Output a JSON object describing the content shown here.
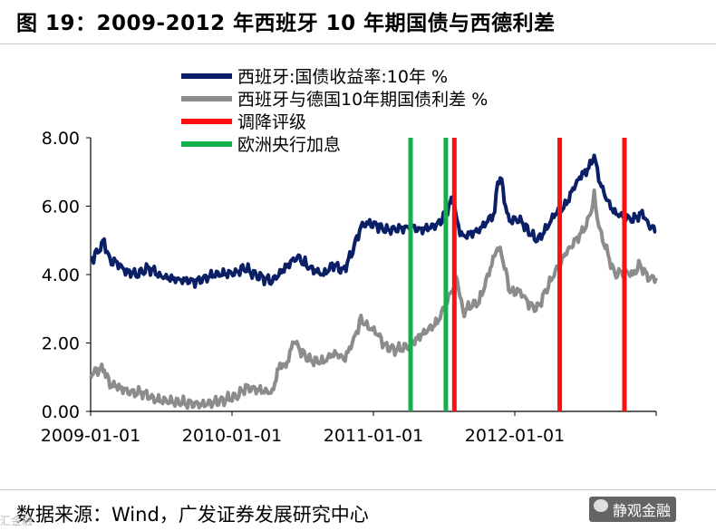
{
  "figure_title": "图 19：2009-2012 年西班牙 10 年期国债与西德利差",
  "source_text": "数据来源：Wind，广发证券发展研究中心",
  "watermark_text": "静观金融",
  "corner_mark": "汇金融",
  "colors": {
    "yield": "#0b1f66",
    "spread": "#8c8c8c",
    "downgrade": "#ff1010",
    "ecb_hike": "#14b04c"
  },
  "chart_data": {
    "type": "line",
    "title": "",
    "x_ticks": [
      "2009-01-01",
      "2010-01-01",
      "2011-01-01",
      "2012-01-01"
    ],
    "y_ticks": [
      "0.00",
      "2.00",
      "4.00",
      "6.00",
      "8.00"
    ],
    "ylim": [
      0,
      8
    ],
    "xlim": [
      "2009-01-01",
      "2012-12-31"
    ],
    "grid": false,
    "legend_position": "top",
    "series": [
      {
        "name": "西班牙:国债收益率:10年 %",
        "color": "#0b1f66",
        "points": [
          [
            "2009-01-01",
            4.4
          ],
          [
            "2009-01-20",
            4.7
          ],
          [
            "2009-02-05",
            4.95
          ],
          [
            "2009-02-20",
            4.4
          ],
          [
            "2009-03-10",
            4.35
          ],
          [
            "2009-04-01",
            4.1
          ],
          [
            "2009-05-01",
            4.0
          ],
          [
            "2009-06-01",
            4.2
          ],
          [
            "2009-07-01",
            3.95
          ],
          [
            "2009-08-15",
            3.85
          ],
          [
            "2009-10-01",
            3.8
          ],
          [
            "2009-11-15",
            4.0
          ],
          [
            "2010-01-10",
            4.05
          ],
          [
            "2010-02-01",
            4.2
          ],
          [
            "2010-03-01",
            4.0
          ],
          [
            "2010-04-15",
            3.8
          ],
          [
            "2010-05-05",
            4.05
          ],
          [
            "2010-06-15",
            4.5
          ],
          [
            "2010-07-01",
            4.4
          ],
          [
            "2010-07-20",
            4.2
          ],
          [
            "2010-08-25",
            4.0
          ],
          [
            "2010-09-20",
            4.3
          ],
          [
            "2010-10-15",
            4.1
          ],
          [
            "2010-11-05",
            4.6
          ],
          [
            "2010-11-30",
            5.4
          ],
          [
            "2010-12-15",
            5.5
          ],
          [
            "2011-01-10",
            5.45
          ],
          [
            "2011-02-01",
            5.3
          ],
          [
            "2011-03-15",
            5.35
          ],
          [
            "2011-04-10",
            5.4
          ],
          [
            "2011-05-01",
            5.3
          ],
          [
            "2011-06-01",
            5.4
          ],
          [
            "2011-06-20",
            5.5
          ],
          [
            "2011-07-15",
            6.0
          ],
          [
            "2011-07-28",
            6.2
          ],
          [
            "2011-08-05",
            5.5
          ],
          [
            "2011-08-20",
            5.1
          ],
          [
            "2011-09-10",
            5.2
          ],
          [
            "2011-10-01",
            5.3
          ],
          [
            "2011-11-10",
            5.8
          ],
          [
            "2011-11-18",
            6.8
          ],
          [
            "2011-11-28",
            6.7
          ],
          [
            "2011-12-15",
            5.6
          ],
          [
            "2012-01-15",
            5.6
          ],
          [
            "2012-02-10",
            5.2
          ],
          [
            "2012-02-28",
            5.0
          ],
          [
            "2012-03-20",
            5.3
          ],
          [
            "2012-04-15",
            5.8
          ],
          [
            "2012-05-10",
            6.0
          ],
          [
            "2012-05-30",
            6.5
          ],
          [
            "2012-06-20",
            6.9
          ],
          [
            "2012-07-10",
            7.1
          ],
          [
            "2012-07-24",
            7.5
          ],
          [
            "2012-08-05",
            6.8
          ],
          [
            "2012-08-25",
            6.2
          ],
          [
            "2012-09-15",
            5.8
          ],
          [
            "2012-10-10",
            5.7
          ],
          [
            "2012-11-01",
            5.6
          ],
          [
            "2012-11-25",
            5.8
          ],
          [
            "2012-12-15",
            5.4
          ],
          [
            "2012-12-31",
            5.25
          ]
        ]
      },
      {
        "name": "西班牙与德国10年期国债利差 %",
        "color": "#8c8c8c",
        "points": [
          [
            "2009-01-01",
            1.05
          ],
          [
            "2009-01-20",
            1.25
          ],
          [
            "2009-02-05",
            1.2
          ],
          [
            "2009-02-20",
            0.8
          ],
          [
            "2009-03-15",
            0.7
          ],
          [
            "2009-04-15",
            0.55
          ],
          [
            "2009-05-15",
            0.55
          ],
          [
            "2009-06-15",
            0.35
          ],
          [
            "2009-07-20",
            0.3
          ],
          [
            "2009-09-01",
            0.25
          ],
          [
            "2009-10-15",
            0.2
          ],
          [
            "2009-12-01",
            0.3
          ],
          [
            "2010-01-15",
            0.45
          ],
          [
            "2010-02-05",
            0.7
          ],
          [
            "2010-03-01",
            0.65
          ],
          [
            "2010-04-15",
            0.55
          ],
          [
            "2010-05-05",
            1.4
          ],
          [
            "2010-05-20",
            1.3
          ],
          [
            "2010-06-10",
            2.1
          ],
          [
            "2010-06-25",
            1.8
          ],
          [
            "2010-07-20",
            1.5
          ],
          [
            "2010-08-25",
            1.45
          ],
          [
            "2010-09-20",
            1.7
          ],
          [
            "2010-10-20",
            1.55
          ],
          [
            "2010-11-15",
            2.2
          ],
          [
            "2010-11-30",
            2.7
          ],
          [
            "2010-12-15",
            2.5
          ],
          [
            "2011-01-10",
            2.3
          ],
          [
            "2011-02-01",
            1.9
          ],
          [
            "2011-03-01",
            1.8
          ],
          [
            "2011-04-01",
            1.9
          ],
          [
            "2011-05-01",
            2.2
          ],
          [
            "2011-06-15",
            2.6
          ],
          [
            "2011-07-25",
            3.6
          ],
          [
            "2011-08-05",
            3.9
          ],
          [
            "2011-08-20",
            2.9
          ],
          [
            "2011-09-10",
            3.1
          ],
          [
            "2011-10-01",
            3.2
          ],
          [
            "2011-11-17",
            4.8
          ],
          [
            "2011-11-28",
            4.6
          ],
          [
            "2011-12-20",
            3.5
          ],
          [
            "2012-01-15",
            3.5
          ],
          [
            "2012-02-10",
            3.1
          ],
          [
            "2012-02-28",
            3.0
          ],
          [
            "2012-03-20",
            3.5
          ],
          [
            "2012-04-15",
            4.1
          ],
          [
            "2012-05-10",
            4.6
          ],
          [
            "2012-05-30",
            4.9
          ],
          [
            "2012-06-20",
            5.2
          ],
          [
            "2012-07-10",
            5.6
          ],
          [
            "2012-07-24",
            6.3
          ],
          [
            "2012-08-05",
            5.4
          ],
          [
            "2012-08-25",
            4.7
          ],
          [
            "2012-09-15",
            4.0
          ],
          [
            "2012-10-10",
            4.1
          ],
          [
            "2012-11-01",
            4.0
          ],
          [
            "2012-11-20",
            4.3
          ],
          [
            "2012-12-10",
            3.9
          ],
          [
            "2012-12-31",
            3.9
          ]
        ]
      },
      {
        "name": "调降评级",
        "color": "#ff1010",
        "kind": "vline",
        "dates": [
          "2011-07-29",
          "2012-04-26",
          "2012-10-10"
        ]
      },
      {
        "name": "欧洲央行加息",
        "color": "#14b04c",
        "kind": "vline",
        "dates": [
          "2011-04-07",
          "2011-07-07"
        ]
      }
    ]
  }
}
